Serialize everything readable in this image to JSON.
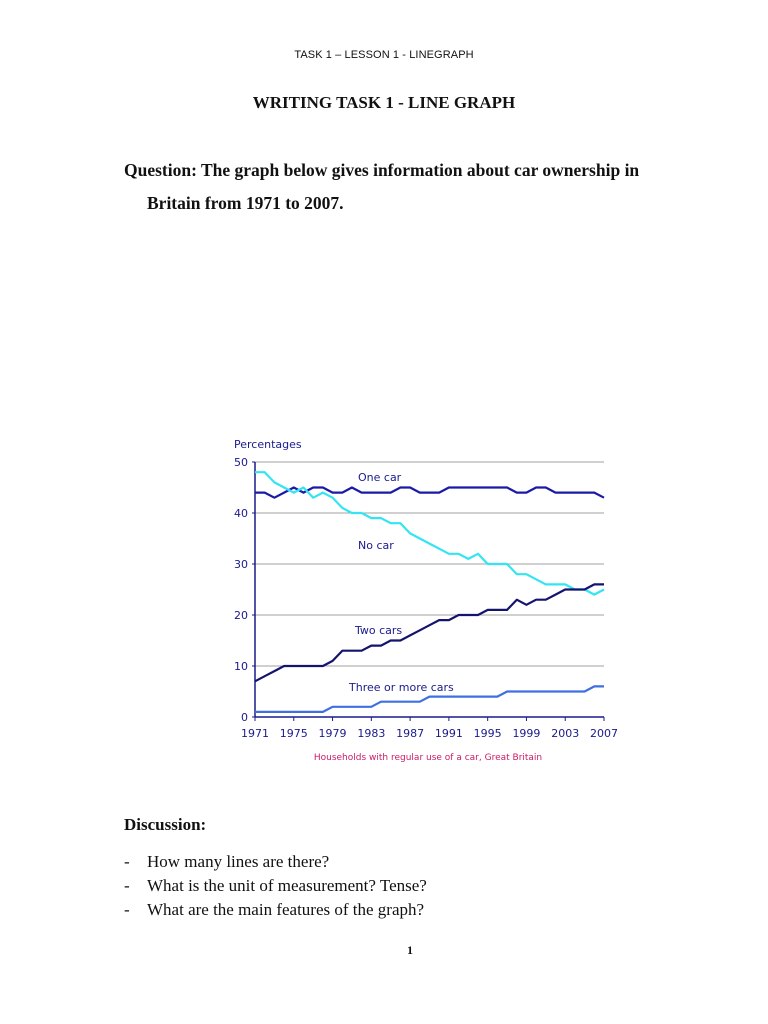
{
  "header": {
    "running_title": "TASK 1 – LESSON 1 - LINEGRAPH"
  },
  "title": "WRITING TASK 1 - LINE GRAPH",
  "question": {
    "line1": "Question: The graph below gives information about car ownership in",
    "line2": "Britain from 1971 to 2007."
  },
  "discussion": {
    "heading": "Discussion:",
    "bullet": "-",
    "items": [
      "How many lines are there?",
      "What is the unit of measurement? Tense?",
      "What are the main features of the graph?"
    ]
  },
  "page_number": "1",
  "colors": {
    "one_car": "#1a1aa6",
    "no_car": "#33e5f2",
    "two_cars": "#14146e",
    "three_or_more": "#3f6fe0",
    "axis": "#1a1a8c",
    "caption": "#cc1a66",
    "grid": "#a0a0a0"
  },
  "chart_data": {
    "type": "line",
    "title": "",
    "ylabel": "Percentages",
    "xlabel": "",
    "caption": "Households with regular use of a car, Great Britain",
    "ylim": [
      0,
      50
    ],
    "yticks": [
      0,
      10,
      20,
      30,
      40,
      50
    ],
    "xlim": [
      1971,
      2007
    ],
    "xticks": [
      1971,
      1975,
      1979,
      1983,
      1987,
      1991,
      1995,
      1999,
      2003,
      2007
    ],
    "grid": true,
    "legend": "inline labels",
    "x": [
      1971,
      1972,
      1973,
      1974,
      1975,
      1976,
      1977,
      1978,
      1979,
      1980,
      1981,
      1982,
      1983,
      1984,
      1985,
      1986,
      1987,
      1988,
      1989,
      1990,
      1991,
      1992,
      1993,
      1994,
      1995,
      1996,
      1997,
      1998,
      1999,
      2000,
      2001,
      2002,
      2003,
      2004,
      2005,
      2006,
      2007
    ],
    "series": [
      {
        "name": "One car",
        "values": [
          44,
          44,
          43,
          44,
          45,
          44,
          45,
          45,
          44,
          44,
          45,
          44,
          44,
          44,
          44,
          45,
          45,
          44,
          44,
          44,
          45,
          45,
          45,
          45,
          45,
          45,
          45,
          44,
          44,
          45,
          45,
          44,
          44,
          44,
          44,
          44,
          43
        ]
      },
      {
        "name": "No car",
        "values": [
          48,
          48,
          46,
          45,
          44,
          45,
          43,
          44,
          43,
          41,
          40,
          40,
          39,
          39,
          38,
          38,
          36,
          35,
          34,
          33,
          32,
          32,
          31,
          32,
          30,
          30,
          30,
          28,
          28,
          27,
          26,
          26,
          26,
          25,
          25,
          24,
          25
        ]
      },
      {
        "name": "Two cars",
        "values": [
          7,
          8,
          9,
          10,
          10,
          10,
          10,
          10,
          11,
          13,
          13,
          13,
          14,
          14,
          15,
          15,
          16,
          17,
          18,
          19,
          19,
          20,
          20,
          20,
          21,
          21,
          21,
          23,
          22,
          23,
          23,
          24,
          25,
          25,
          25,
          26,
          26
        ]
      },
      {
        "name": "Three or more cars",
        "values": [
          1,
          1,
          1,
          1,
          1,
          1,
          1,
          1,
          2,
          2,
          2,
          2,
          2,
          3,
          3,
          3,
          3,
          3,
          4,
          4,
          4,
          4,
          4,
          4,
          4,
          4,
          5,
          5,
          5,
          5,
          5,
          5,
          5,
          5,
          5,
          6,
          6
        ]
      }
    ],
    "labels": {
      "one_car": "One car",
      "no_car": "No car",
      "two_cars": "Two cars",
      "three_or_more": "Three or more cars"
    }
  }
}
